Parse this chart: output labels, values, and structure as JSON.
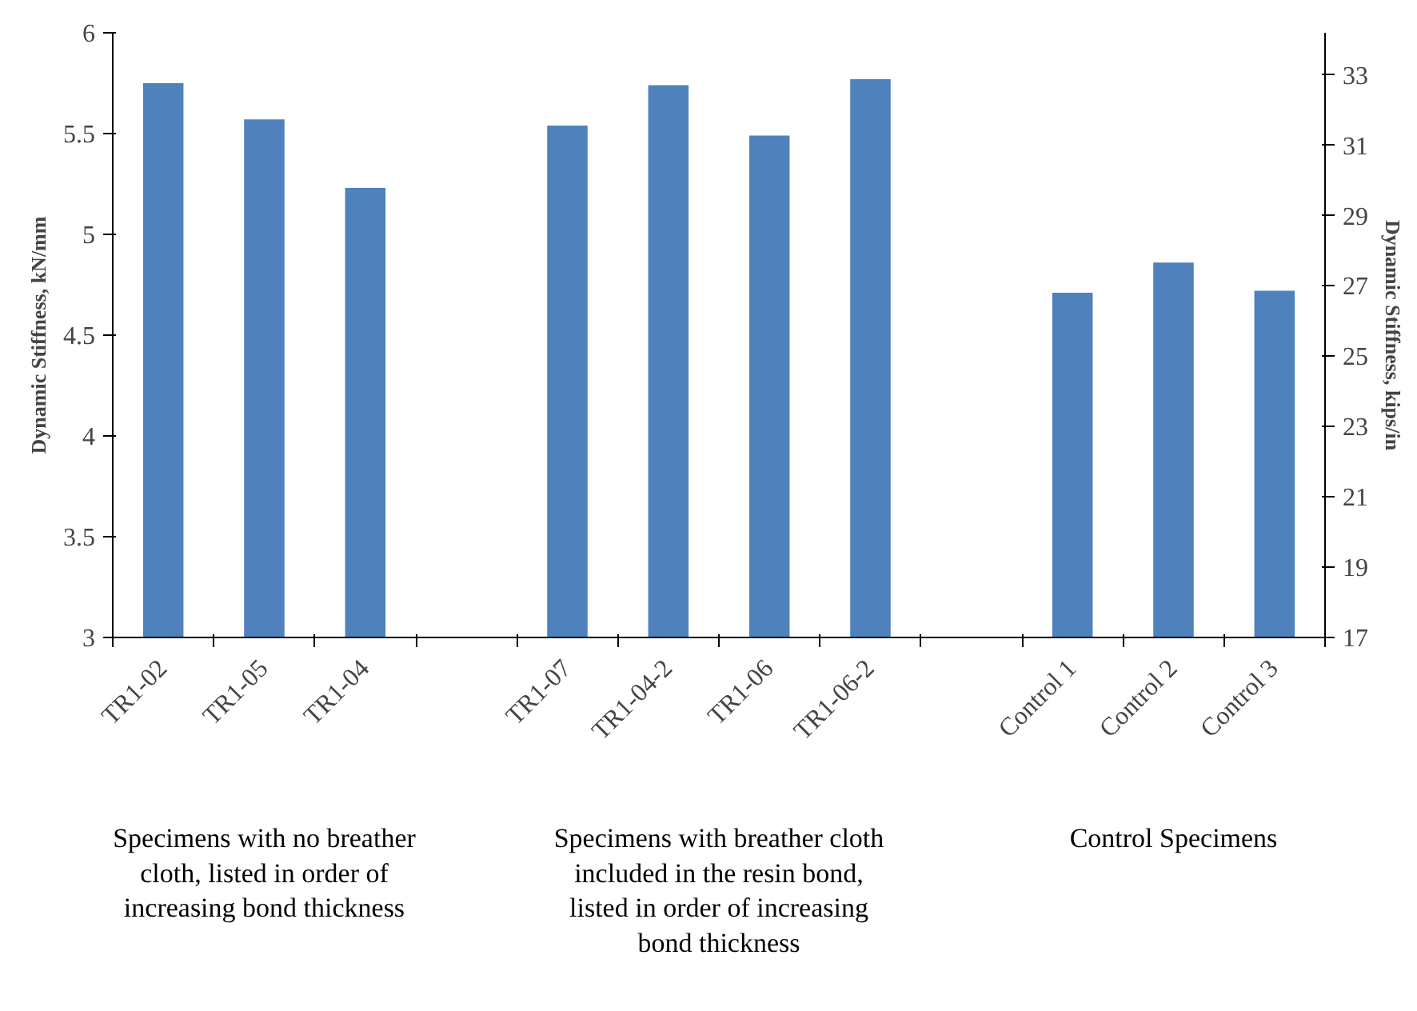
{
  "chart_data": {
    "type": "bar",
    "ylabel": "Dynamic Stiffness, kN/mm",
    "y2label": "Dynamic Stiffness, kips/in",
    "categories": [
      "TR1-02",
      "TR1-05",
      "TR1-04",
      null,
      "TR1-07",
      "TR1-04-2",
      "TR1-06",
      "TR1-06-2",
      null,
      "Control 1",
      "Control 2",
      "Control 3"
    ],
    "values": [
      5.75,
      5.57,
      5.23,
      null,
      5.54,
      5.74,
      5.49,
      5.77,
      null,
      4.71,
      4.86,
      4.72
    ],
    "color": "#4f81bd",
    "ylim": [
      3,
      6
    ],
    "yticks": [
      3,
      3.5,
      4,
      4.5,
      5,
      5.5,
      6
    ],
    "y2lim": [
      17,
      34.2
    ],
    "y2ticks": [
      17,
      19,
      21,
      23,
      25,
      27,
      29,
      31,
      33
    ],
    "grid": false,
    "annotations": [
      "Specimens with no breather\ncloth, listed in order of\nincreasing bond thickness",
      "Specimens with breather cloth\nincluded in the resin bond,\nlisted in order of increasing\nbond thickness",
      "Control Specimens"
    ]
  }
}
